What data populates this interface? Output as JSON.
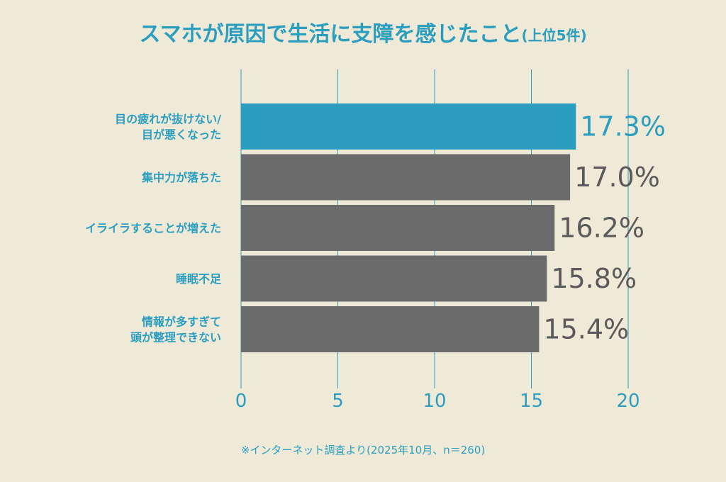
{
  "chart_data": {
    "type": "bar",
    "orientation": "horizontal",
    "title": "スマホが原因で生活に支障を感じたこと",
    "title_suffix": "(上位5件)",
    "categories": [
      [
        "目の疲れが抜けない/",
        "目が悪くなった"
      ],
      [
        "集中力が落ちた"
      ],
      [
        "イライラすることが増えた"
      ],
      [
        "睡眠不足"
      ],
      [
        "情報が多すぎて",
        "頭が整理できない"
      ]
    ],
    "values": [
      17.3,
      17.0,
      16.2,
      15.8,
      15.4
    ],
    "value_labels": [
      "17.3%",
      "17.0%",
      "16.2%",
      "15.8%",
      "15.4%"
    ],
    "highlight_index": 0,
    "xlim": [
      0,
      20
    ],
    "xticks": [
      "0",
      "5",
      "10",
      "15",
      "20"
    ],
    "grid": true,
    "footnote": "※インターネット調査より(2025年10月、n＝260)"
  },
  "colors": {
    "background": "#efead7",
    "accent": "#2b9ebf",
    "bar": "#6b6b6b",
    "bar_highlight": "#2b9ebf",
    "value_label": "#5a5a5a",
    "category_label": "#2b9ebf",
    "grid": "#2b9ebf"
  }
}
